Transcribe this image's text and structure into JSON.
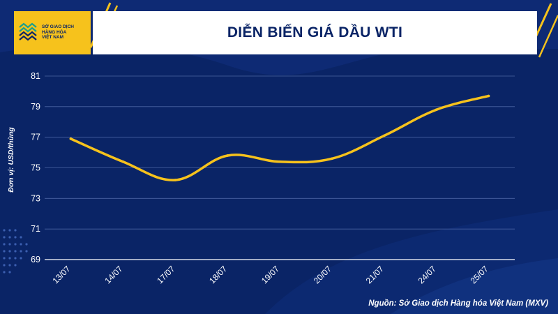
{
  "header": {
    "logo_lines": [
      "SỞ GIAO DỊCH",
      "HÀNG HÓA",
      "VIỆT NAM"
    ],
    "title": "DIỄN BIẾN GIÁ DẦU WTI"
  },
  "source": "Nguồn: Sở Giao dịch Hàng hóa Việt Nam (MXV)",
  "colors": {
    "background": "#0a2466",
    "accent": "#f6c21c",
    "line": "#f6c21c",
    "grid": "#4a63a3"
  },
  "chart_data": {
    "type": "line",
    "title": "DIỄN BIẾN GIÁ DẦU WTI",
    "xlabel": "",
    "ylabel": "Đơn vị: USD/thùng",
    "categories": [
      "13/07",
      "14/07",
      "17/07",
      "18/07",
      "19/07",
      "20/07",
      "21/07",
      "24/07",
      "25/07"
    ],
    "series": [
      {
        "values": [
          76.9,
          75.4,
          74.2,
          75.8,
          75.4,
          75.6,
          77.1,
          78.8,
          79.7
        ]
      }
    ],
    "yticks": [
      69,
      71,
      73,
      75,
      77,
      79,
      81
    ],
    "ylim": [
      69,
      81
    ],
    "grid": true,
    "legend": "none"
  }
}
